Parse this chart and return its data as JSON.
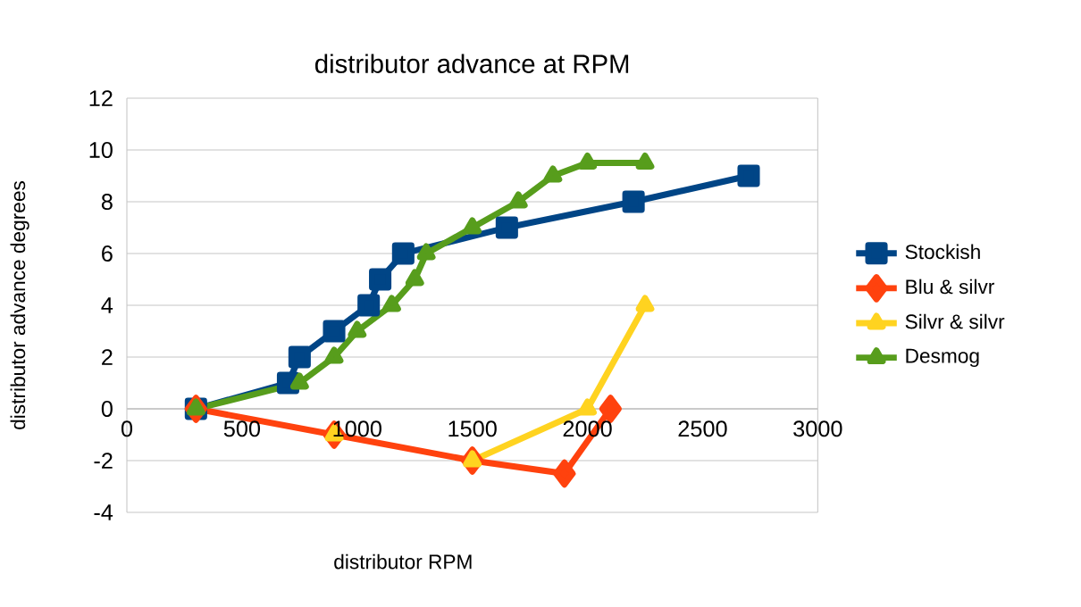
{
  "chart_data": {
    "type": "line",
    "title": "distributor advance at RPM",
    "xlabel": "distributor RPM",
    "ylabel": "distributor advance degrees",
    "xlim": [
      0,
      3000
    ],
    "xticks": [
      0,
      500,
      1000,
      1500,
      2000,
      2500,
      3000
    ],
    "ylim": [
      -4,
      12
    ],
    "yticks": [
      -4,
      -2,
      0,
      2,
      4,
      6,
      8,
      10,
      12
    ],
    "grid": "y",
    "legend": "right",
    "line_style": "solid",
    "series": [
      {
        "name": "Stockish",
        "color": "#004586",
        "marker": "square",
        "x": [
          300,
          700,
          750,
          900,
          1050,
          1100,
          1200,
          1650,
          2200,
          2700
        ],
        "values": [
          0,
          1,
          2,
          3,
          4,
          5,
          6,
          7,
          8,
          9
        ]
      },
      {
        "name": "Blu & silvr",
        "color": "#ff420e",
        "marker": "diamond",
        "x": [
          300,
          900,
          1500,
          1900,
          2100
        ],
        "values": [
          0,
          -1,
          -2,
          -2.5,
          0
        ]
      },
      {
        "name": "Silvr & silvr",
        "color": "#ffd320",
        "marker": "triangle",
        "x": [
          900,
          1200,
          1500,
          2000,
          2250
        ],
        "values": [
          -1,
          null,
          -2,
          0,
          4
        ]
      },
      {
        "name": "Desmog",
        "color": "#579d1c",
        "marker": "triangle",
        "x": [
          300,
          750,
          900,
          1000,
          1150,
          1250,
          1300,
          1500,
          1700,
          1850,
          2000,
          2250
        ],
        "values": [
          0,
          1,
          2,
          3,
          4,
          5,
          6,
          7,
          8,
          9,
          9.5,
          9.5
        ]
      }
    ]
  }
}
